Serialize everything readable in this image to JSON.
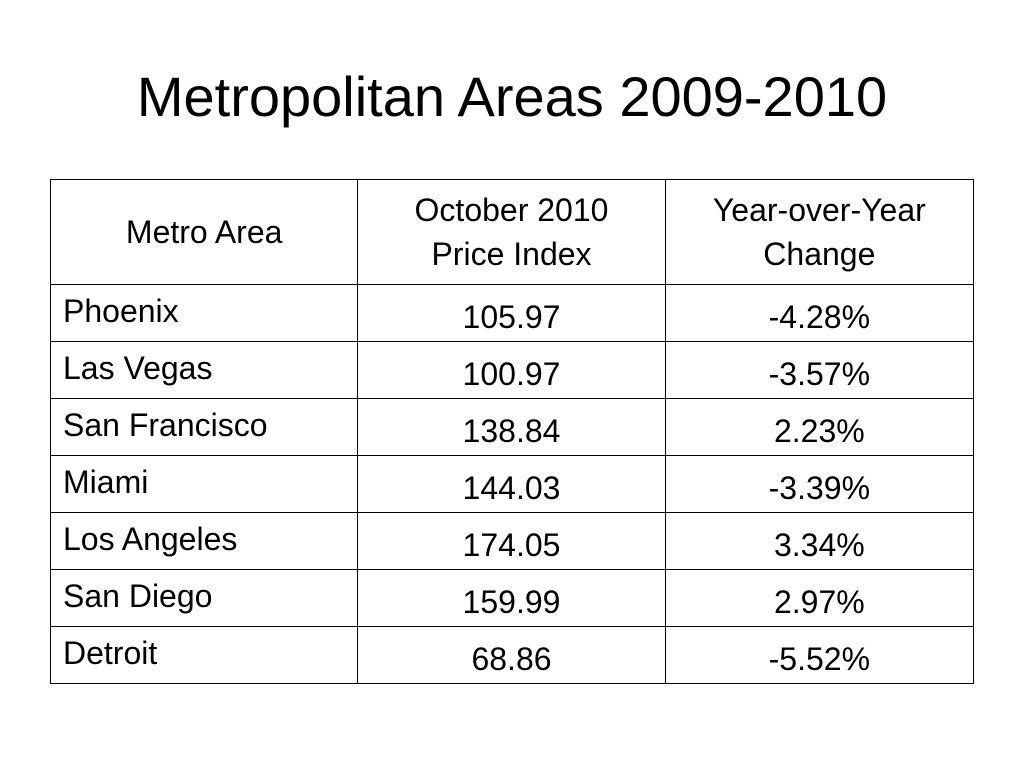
{
  "slide": {
    "title": "Metropolitan Areas 2009-2010"
  },
  "table": {
    "headers": [
      {
        "line1": "Metro Area",
        "line2": ""
      },
      {
        "line1": "October 2010",
        "line2": "Price Index"
      },
      {
        "line1": "Year-over-Year",
        "line2": "Change"
      }
    ],
    "rows": [
      {
        "metro": "Phoenix",
        "index": "105.97",
        "change": "-4.28%"
      },
      {
        "metro": "Las Vegas",
        "index": "100.97",
        "change": "-3.57%"
      },
      {
        "metro": "San Francisco",
        "index": "138.84",
        "change": "2.23%"
      },
      {
        "metro": "Miami",
        "index": "144.03",
        "change": "-3.39%"
      },
      {
        "metro": "Los Angeles",
        "index": "174.05",
        "change": "3.34%"
      },
      {
        "metro": "San Diego",
        "index": "159.99",
        "change": "2.97%"
      },
      {
        "metro": "Detroit",
        "index": "68.86",
        "change": "-5.52%"
      }
    ]
  }
}
